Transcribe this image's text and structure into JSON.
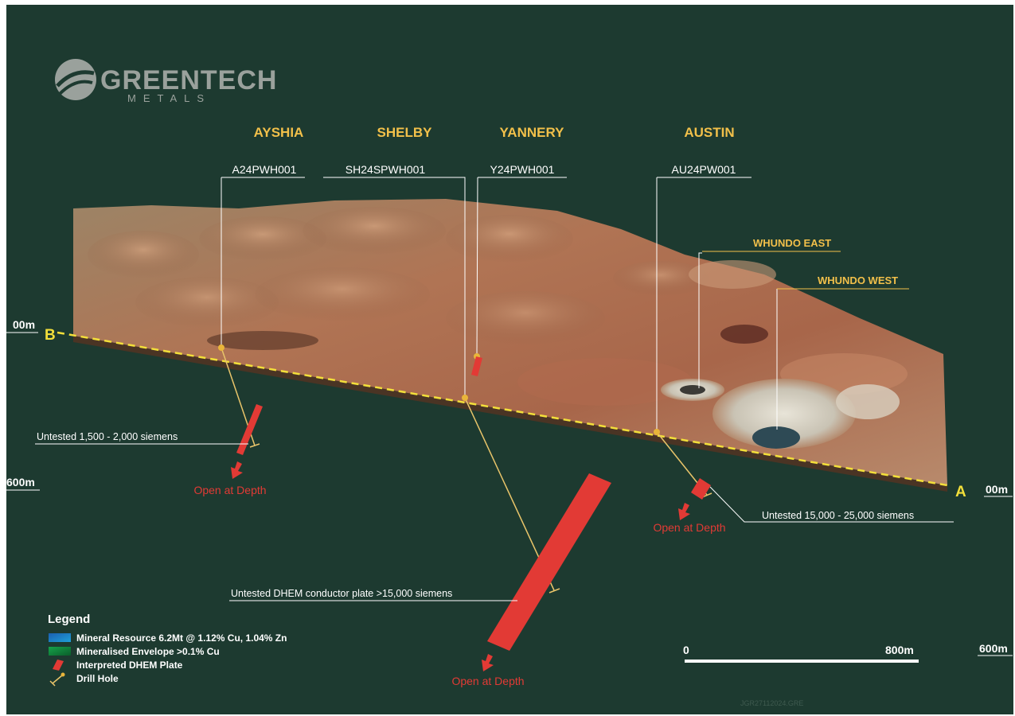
{
  "logo": {
    "name": "GREENTECH",
    "tagline": "METALS"
  },
  "sites": [
    {
      "name": "AYSHIA",
      "hole": "A24PWH001"
    },
    {
      "name": "SHELBY",
      "hole": "SH24SPWH001"
    },
    {
      "name": "YANNERY",
      "hole": "Y24PWH001"
    },
    {
      "name": "AUSTIN",
      "hole": "AU24PW001"
    }
  ],
  "pits": {
    "east": "WHUNDO EAST",
    "west": "WHUNDO WEST"
  },
  "section": {
    "start": "B",
    "end": "A"
  },
  "depth_labels": {
    "left_top": "00m",
    "left_bottom": "600m",
    "right_top": "00m",
    "right_bottom": "600m"
  },
  "annotations": {
    "ayshia_conductor": "Untested 1,500 - 2,000 siemens",
    "austin_conductor": "Untested  15,000 - 25,000 siemens",
    "shelby_conductor": "Untested DHEM conductor plate >15,000 siemens",
    "open_at_depth": "Open at Depth"
  },
  "legend": {
    "title": "Legend",
    "items": [
      {
        "label": "Mineral Resource 6.2Mt @ 1.12% Cu, 1.04% Zn",
        "icon": "mineral-resource-swatch"
      },
      {
        "label": "Mineralised Envelope >0.1% Cu",
        "icon": "mineralised-envelope-swatch"
      },
      {
        "label": "Interpreted  DHEM Plate",
        "icon": "dhem-plate-icon"
      },
      {
        "label": "Drill Hole",
        "icon": "drill-hole-icon"
      }
    ]
  },
  "scale_bar": {
    "start": "0",
    "end": "800m"
  },
  "job_code": "JGR27112024.GRE",
  "colors": {
    "background": "#1d3a30",
    "site_label": "#f2c04a",
    "plate": "#e23a35",
    "section_line": "#f3df3a",
    "drill_trace": "#e9c56a"
  }
}
